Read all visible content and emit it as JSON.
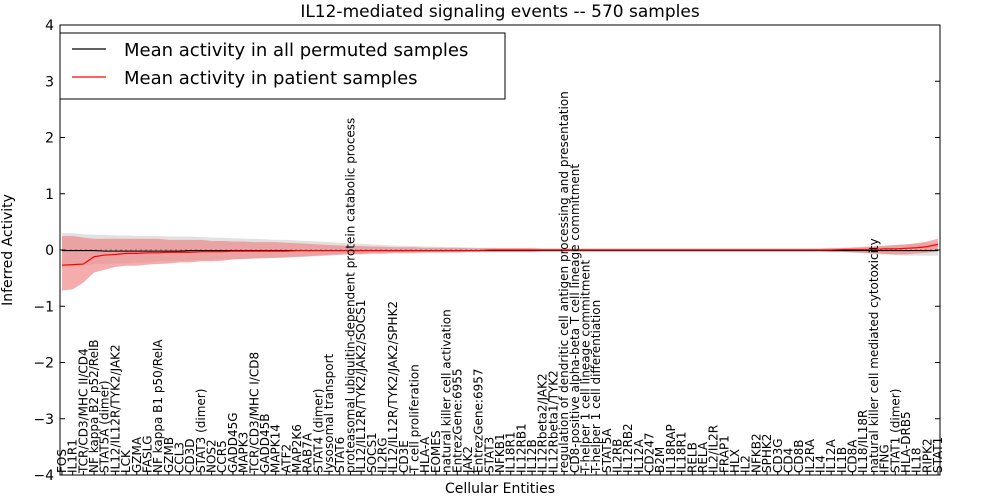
{
  "chart_data": {
    "type": "line",
    "title": "IL12-mediated signaling events -- 570 samples",
    "xlabel": "Cellular Entities",
    "ylabel": "Inferred Activity",
    "ylim": [
      -4,
      4
    ],
    "yticks": [
      "−4",
      "−3",
      "−2",
      "−1",
      "0",
      "1",
      "2",
      "3",
      "4"
    ],
    "grid": false,
    "legend_position": "top-left",
    "legend": {
      "permuted": "Mean activity in all permuted samples",
      "patient": "Mean activity in patient samples"
    },
    "colors": {
      "permuted_line": "#000000",
      "patient_line": "#ff0000",
      "patient_band": "#f08080",
      "permuted_band": "#c8c8c8"
    },
    "categories": [
      "FOS",
      "IL1R1",
      "TCR/CD3/MHC II/CD4",
      "NF kappa B2 p52/RelB",
      "STAT5A (dimer)",
      "IL12/IL12R/TYK2/JAK2",
      "LCK",
      "GZMA",
      "FASLG",
      "NF kappa B1 p50/RelA",
      "GZMB",
      "CCL3",
      "CD3D",
      "STAT3 (dimer)",
      "NOS2",
      "CCR5",
      "GADD45G",
      "MAPK3",
      "TCR/CD3/MHC I/CD8",
      "GADD45B",
      "MAPK14",
      "ATF2",
      "MAP2K6",
      "RAB7A",
      "STAT4 (dimer)",
      "lysosomal transport",
      "STAT6",
      "proteasomal ubiquitin-dependent protein catabolic process",
      "IL12/IL12R/TYK2/JAK2/SOCS1",
      "SOCS1",
      "IL2RG",
      "IL12/IL12R/TYK2/JAK2/SPHK2",
      "CD3E",
      "T cell proliferation",
      "HLA-A",
      "EOMES",
      "natural killer cell activation",
      "EntrezGene:6955",
      "JAK2",
      "EntrezGene:6957",
      "STAT3",
      "NFKB1",
      "IL18R1",
      "IL12RB1",
      "IL12B",
      "IL12Rbeta2/JAK2",
      "IL12Rbeta1/TYK2",
      "regulation of dendritic cell antigen processing and presentation",
      "CD8-positive alpha-beta T cell lineage commitment",
      "T-helper 1 cell lineage commitment",
      "T-helper 1 cell differentiation",
      "STAT5A",
      "IL2RB",
      "IL12RB2",
      "IL12A",
      "CD247",
      "B2M",
      "IL18RAP",
      "IL18R1",
      "RELB",
      "RELA",
      "IL2/IL2R",
      "FRAP1",
      "HLX",
      "IL2",
      "NFKB2",
      "SPHK2",
      "CD3G",
      "CD4",
      "CD8B",
      "IL2RA",
      "IL4",
      "IL12A",
      "IL1B",
      "CD8A",
      "IL18/IL18R",
      "natural killer cell mediated cytotoxicity",
      "IFNG",
      "STAT1 (dimer)",
      "HLA-DRB5",
      "IL18",
      "RIPK2",
      "STAT1"
    ],
    "patient_mean": [
      -0.27,
      -0.26,
      -0.25,
      -0.12,
      -0.09,
      -0.08,
      -0.06,
      -0.06,
      -0.05,
      -0.05,
      -0.04,
      -0.04,
      -0.04,
      -0.03,
      -0.03,
      -0.03,
      -0.02,
      -0.02,
      -0.02,
      -0.02,
      -0.02,
      -0.02,
      -0.01,
      -0.01,
      -0.01,
      -0.01,
      -0.01,
      -0.01,
      -0.01,
      -0.01,
      -0.01,
      -0.01,
      -0.01,
      -0.01,
      -0.01,
      -0.01,
      -0.01,
      -0.01,
      -0.01,
      -0.01,
      0,
      0,
      0,
      0,
      0,
      0,
      0,
      0,
      0,
      0,
      0,
      0,
      0,
      0,
      0,
      0,
      0,
      0,
      0,
      0,
      0,
      0,
      0,
      0,
      0,
      0,
      0,
      0,
      0,
      0,
      0,
      0,
      0,
      0.01,
      0.01,
      0.01,
      0.01,
      0.02,
      0.02,
      0.03,
      0.04,
      0.06,
      0.1
    ],
    "patient_low": [
      -0.72,
      -0.7,
      -0.58,
      -0.4,
      -0.35,
      -0.3,
      -0.28,
      -0.28,
      -0.26,
      -0.25,
      -0.24,
      -0.22,
      -0.22,
      -0.2,
      -0.2,
      -0.19,
      -0.17,
      -0.16,
      -0.15,
      -0.14,
      -0.14,
      -0.13,
      -0.12,
      -0.11,
      -0.1,
      -0.09,
      -0.08,
      -0.07,
      -0.07,
      -0.06,
      -0.06,
      -0.05,
      -0.05,
      -0.05,
      -0.04,
      -0.04,
      -0.04,
      -0.04,
      -0.03,
      -0.03,
      -0.03,
      -0.03,
      -0.03,
      -0.03,
      -0.03,
      -0.02,
      -0.02,
      -0.02,
      -0.02,
      -0.02,
      -0.02,
      -0.02,
      -0.02,
      -0.02,
      -0.02,
      -0.02,
      -0.02,
      -0.02,
      -0.02,
      -0.02,
      -0.02,
      -0.02,
      -0.02,
      -0.02,
      -0.02,
      -0.02,
      -0.02,
      -0.02,
      -0.02,
      -0.02,
      -0.02,
      -0.02,
      -0.03,
      -0.03,
      -0.04,
      -0.05,
      -0.06,
      -0.07,
      -0.08,
      -0.08,
      -0.06,
      -0.05,
      -0.02
    ],
    "patient_high": [
      0.25,
      0.25,
      0.22,
      0.2,
      0.2,
      0.2,
      0.2,
      0.2,
      0.2,
      0.2,
      0.18,
      0.18,
      0.18,
      0.18,
      0.16,
      0.16,
      0.15,
      0.15,
      0.14,
      0.14,
      0.14,
      0.13,
      0.12,
      0.11,
      0.1,
      0.09,
      0.08,
      0.07,
      0.07,
      0.06,
      0.06,
      0.05,
      0.05,
      0.05,
      0.04,
      0.04,
      0.04,
      0.04,
      0.03,
      0.03,
      0.03,
      0.03,
      0.03,
      0.03,
      0.03,
      0.02,
      0.02,
      0.02,
      0.02,
      0.02,
      0.02,
      0.02,
      0.02,
      0.02,
      0.02,
      0.02,
      0.02,
      0.02,
      0.02,
      0.02,
      0.02,
      0.02,
      0.02,
      0.02,
      0.02,
      0.02,
      0.02,
      0.02,
      0.02,
      0.02,
      0.02,
      0.02,
      0.03,
      0.03,
      0.04,
      0.05,
      0.06,
      0.07,
      0.09,
      0.1,
      0.12,
      0.15,
      0.2
    ],
    "permuted_mean": [
      -0.01,
      -0.01,
      -0.01,
      -0.01,
      -0.02,
      -0.02,
      -0.02,
      -0.02,
      -0.02,
      -0.02,
      -0.02,
      -0.02,
      -0.01,
      -0.01,
      -0.01,
      -0.01,
      -0.01,
      -0.01,
      -0.01,
      -0.01,
      -0.01,
      -0.01,
      -0.01,
      -0.01,
      -0.01,
      -0.01,
      -0.01,
      -0.01,
      -0.01,
      -0.01,
      -0.01,
      -0.01,
      -0.01,
      -0.01,
      -0.01,
      -0.01,
      -0.01,
      -0.01,
      -0.01,
      -0.01,
      -0.01,
      -0.01,
      -0.01,
      -0.01,
      -0.01,
      -0.01,
      -0.01,
      -0.01,
      -0.01,
      -0.01,
      -0.01,
      -0.01,
      -0.01,
      -0.01,
      -0.01,
      -0.01,
      -0.01,
      -0.01,
      -0.01,
      -0.01,
      -0.01,
      -0.01,
      -0.01,
      -0.01,
      -0.01,
      -0.01,
      -0.01,
      -0.01,
      -0.01,
      -0.01,
      -0.01,
      -0.01,
      -0.01,
      -0.01,
      -0.01,
      -0.01,
      -0.01,
      -0.01,
      -0.01,
      -0.01,
      -0.01,
      -0.01,
      -0.01
    ],
    "permuted_low": [
      -0.3,
      -0.3,
      -0.28,
      -0.25,
      -0.25,
      -0.24,
      -0.24,
      -0.22,
      -0.22,
      -0.2,
      -0.2,
      -0.2,
      -0.19,
      -0.18,
      -0.18,
      -0.17,
      -0.16,
      -0.16,
      -0.15,
      -0.15,
      -0.14,
      -0.14,
      -0.13,
      -0.12,
      -0.11,
      -0.1,
      -0.09,
      -0.08,
      -0.08,
      -0.07,
      -0.07,
      -0.06,
      -0.06,
      -0.06,
      -0.05,
      -0.05,
      -0.05,
      -0.05,
      -0.04,
      -0.04,
      -0.04,
      -0.04,
      -0.04,
      -0.04,
      -0.04,
      -0.03,
      -0.03,
      -0.03,
      -0.03,
      -0.03,
      -0.03,
      -0.03,
      -0.03,
      -0.03,
      -0.03,
      -0.03,
      -0.03,
      -0.03,
      -0.03,
      -0.03,
      -0.03,
      -0.03,
      -0.03,
      -0.03,
      -0.03,
      -0.03,
      -0.03,
      -0.03,
      -0.03,
      -0.03,
      -0.03,
      -0.03,
      -0.04,
      -0.04,
      -0.05,
      -0.06,
      -0.07,
      -0.08,
      -0.09,
      -0.1,
      -0.1,
      -0.1,
      -0.1
    ],
    "permuted_high": [
      0.3,
      0.3,
      0.28,
      0.27,
      0.27,
      0.26,
      0.26,
      0.25,
      0.25,
      0.25,
      0.24,
      0.24,
      0.24,
      0.23,
      0.22,
      0.22,
      0.21,
      0.2,
      0.2,
      0.19,
      0.18,
      0.18,
      0.17,
      0.16,
      0.15,
      0.14,
      0.13,
      0.12,
      0.11,
      0.1,
      0.09,
      0.08,
      0.07,
      0.07,
      0.06,
      0.06,
      0.05,
      0.05,
      0.05,
      0.04,
      0.04,
      0.04,
      0.04,
      0.04,
      0.04,
      0.03,
      0.03,
      0.03,
      0.03,
      0.03,
      0.03,
      0.03,
      0.03,
      0.03,
      0.03,
      0.03,
      0.03,
      0.03,
      0.03,
      0.03,
      0.03,
      0.03,
      0.03,
      0.03,
      0.03,
      0.03,
      0.03,
      0.03,
      0.03,
      0.03,
      0.03,
      0.03,
      0.04,
      0.04,
      0.05,
      0.06,
      0.07,
      0.08,
      0.09,
      0.1,
      0.11,
      0.12,
      0.13
    ]
  }
}
